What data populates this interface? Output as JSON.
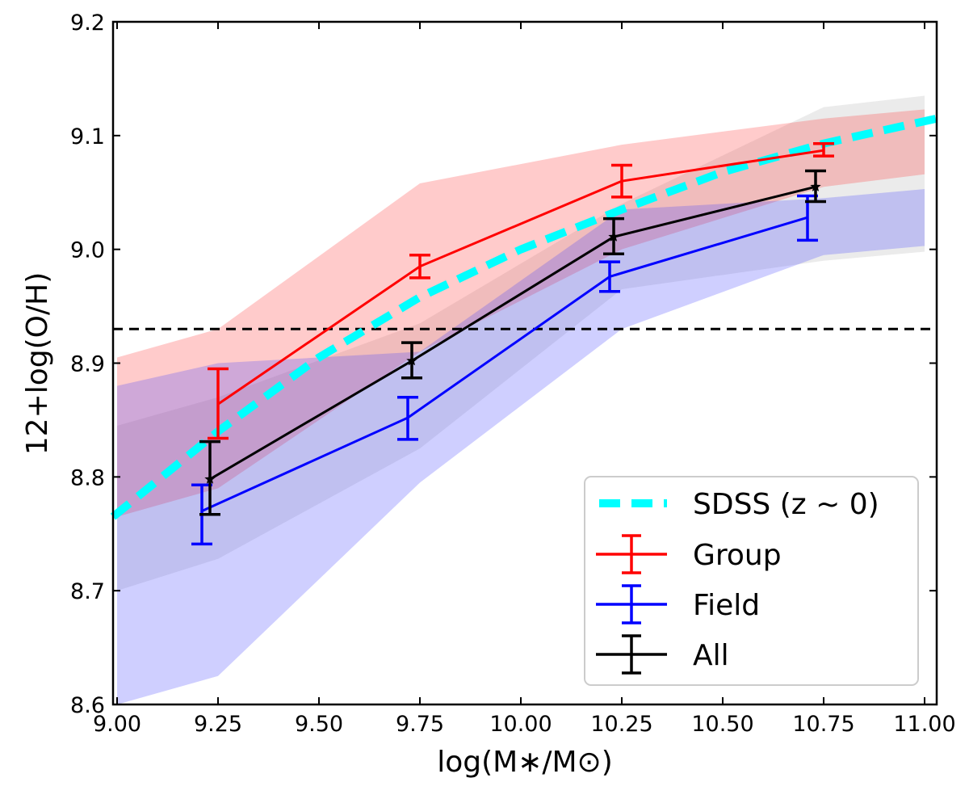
{
  "chart_data": {
    "type": "line",
    "title": "",
    "xlabel": "log(M∗/M⊙)",
    "ylabel": "12+log(O/H)",
    "xlim": [
      8.99,
      11.03
    ],
    "ylim": [
      8.6,
      9.2
    ],
    "xticks": [
      9.0,
      9.25,
      9.5,
      9.75,
      10.0,
      10.25,
      10.5,
      10.75,
      11.0
    ],
    "xtick_labels": [
      "9.00",
      "9.25",
      "9.50",
      "9.75",
      "10.00",
      "10.25",
      "10.50",
      "10.75",
      "11.00"
    ],
    "yticks": [
      8.6,
      8.7,
      8.8,
      8.9,
      9.0,
      9.1,
      9.2
    ],
    "ytick_labels": [
      "8.6",
      "8.7",
      "8.8",
      "8.9",
      "9.0",
      "9.1",
      "9.2"
    ],
    "reference_line": {
      "y": 8.93,
      "style": "dashed",
      "color": "#000000"
    },
    "legend": {
      "position": "bottom-right",
      "entries": [
        "SDSS (z ~ 0)",
        "Group",
        "Field",
        "All"
      ]
    },
    "bands": [
      {
        "name": "All scatter",
        "color": "#808080",
        "opacity": 0.16,
        "x": [
          9.0,
          9.25,
          9.75,
          10.25,
          10.75,
          11.0
        ],
        "upper": [
          8.845,
          8.87,
          8.935,
          9.04,
          9.125,
          9.135
        ],
        "lower": [
          8.7,
          8.728,
          8.825,
          8.965,
          8.99,
          8.998
        ]
      },
      {
        "name": "Group scatter",
        "color": "#ff3030",
        "opacity": 0.25,
        "x": [
          9.0,
          9.25,
          9.75,
          10.25,
          10.75,
          11.0
        ],
        "upper": [
          8.905,
          8.93,
          9.058,
          9.092,
          9.115,
          9.123
        ],
        "lower": [
          8.765,
          8.79,
          8.91,
          9.0,
          9.055,
          9.066
        ]
      },
      {
        "name": "Field scatter",
        "color": "#4040ff",
        "opacity": 0.25,
        "x": [
          9.0,
          9.25,
          9.75,
          10.25,
          10.75,
          11.0
        ],
        "upper": [
          8.88,
          8.9,
          8.91,
          9.035,
          9.045,
          9.053
        ],
        "lower": [
          8.6,
          8.625,
          8.795,
          8.93,
          8.995,
          9.003
        ]
      }
    ],
    "series": [
      {
        "name": "SDSS (z ~ 0)",
        "color": "#00ffff",
        "style": "dashed",
        "x": [
          8.99,
          9.25,
          9.5,
          9.75,
          10.0,
          10.25,
          10.5,
          10.75,
          11.03
        ],
        "y": [
          8.765,
          8.84,
          8.905,
          8.958,
          9.0,
          9.035,
          9.068,
          9.093,
          9.115
        ]
      },
      {
        "name": "Group",
        "color": "#ff0000",
        "x": [
          9.25,
          9.75,
          10.25,
          10.75
        ],
        "y": [
          8.864,
          8.985,
          9.06,
          9.087
        ],
        "err_low": [
          8.834,
          8.975,
          9.046,
          9.082
        ],
        "err_high": [
          8.895,
          8.995,
          9.074,
          9.093
        ]
      },
      {
        "name": "Field",
        "color": "#0000ff",
        "x": [
          9.21,
          9.72,
          10.22,
          10.71
        ],
        "y": [
          8.77,
          8.852,
          8.976,
          9.028
        ],
        "err_low": [
          8.741,
          8.833,
          8.963,
          9.008
        ],
        "err_high": [
          8.793,
          8.87,
          8.989,
          9.047
        ]
      },
      {
        "name": "All",
        "color": "#000000",
        "marker": "star",
        "x": [
          9.23,
          9.73,
          10.23,
          10.73
        ],
        "y": [
          8.798,
          8.902,
          9.011,
          9.055
        ],
        "err_low": [
          8.767,
          8.887,
          8.996,
          9.042
        ],
        "err_high": [
          8.831,
          8.918,
          9.027,
          9.069
        ]
      }
    ]
  }
}
